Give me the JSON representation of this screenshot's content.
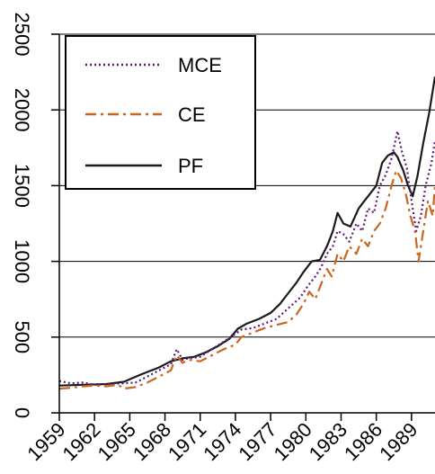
{
  "chart_data": {
    "type": "line",
    "title": "",
    "xlabel": "",
    "ylabel": "",
    "xlim": [
      1959,
      1991
    ],
    "ylim": [
      0,
      2500
    ],
    "grid": "horizontal",
    "legend_position": "top-left",
    "x_ticks": [
      "1959",
      "1962",
      "1965",
      "1968",
      "1971",
      "1974",
      "1977",
      "1980",
      "1983",
      "1986",
      "1989"
    ],
    "y_ticks": [
      "0",
      "500",
      "1000",
      "1500",
      "2000",
      "2500"
    ],
    "series": [
      {
        "name": "PF",
        "style": "solid",
        "color": "#1a1a1a",
        "x": [
          1959,
          1961,
          1963,
          1964.5,
          1966,
          1967.5,
          1968.5,
          1969.5,
          1970.5,
          1971.5,
          1972.5,
          1973.5,
          1974.2,
          1975,
          1976,
          1977,
          1977.8,
          1978.5,
          1979.2,
          1979.8,
          1980.5,
          1981.2,
          1981.8,
          1982.3,
          1982.7,
          1983.2,
          1983.8,
          1984.5,
          1985,
          1985.5,
          1986,
          1986.5,
          1987,
          1987.5,
          1987.8,
          1988.3,
          1988.7,
          1989.1,
          1989.5,
          1990,
          1990.5,
          1991
        ],
        "y": [
          180,
          185,
          190,
          205,
          255,
          300,
          340,
          360,
          370,
          400,
          440,
          490,
          555,
          590,
          620,
          660,
          720,
          790,
          860,
          930,
          1000,
          1010,
          1100,
          1200,
          1320,
          1250,
          1230,
          1350,
          1400,
          1450,
          1500,
          1650,
          1700,
          1720,
          1690,
          1600,
          1500,
          1430,
          1560,
          1780,
          1980,
          2220
        ]
      },
      {
        "name": "MCE",
        "style": "dotted",
        "color": "#5c1a7a",
        "x": [
          1959,
          1960,
          1961,
          1962,
          1963,
          1964.5,
          1965.5,
          1966.5,
          1967.5,
          1968.5,
          1969,
          1969.5,
          1970,
          1971,
          1972,
          1973,
          1974,
          1974.5,
          1975.5,
          1976.5,
          1977.5,
          1978.5,
          1979.5,
          1980.2,
          1980.8,
          1981.3,
          1981.8,
          1982.3,
          1982.7,
          1983.2,
          1983.7,
          1984.3,
          1984.8,
          1985.3,
          1985.8,
          1986.3,
          1986.8,
          1987.3,
          1987.8,
          1988.2,
          1988.6,
          1989,
          1989.4,
          1989.8,
          1990.2,
          1990.7,
          1991
        ],
        "y": [
          210,
          195,
          200,
          185,
          190,
          195,
          200,
          240,
          280,
          320,
          420,
          350,
          360,
          370,
          420,
          470,
          520,
          550,
          560,
          590,
          620,
          690,
          760,
          840,
          900,
          960,
          1050,
          1100,
          1200,
          1180,
          1130,
          1250,
          1200,
          1350,
          1320,
          1500,
          1570,
          1680,
          1860,
          1720,
          1620,
          1400,
          1200,
          1300,
          1500,
          1650,
          1800
        ]
      },
      {
        "name": "CE",
        "style": "dashdot",
        "color": "#c8661e",
        "x": [
          1959,
          1960,
          1961,
          1962,
          1963,
          1964,
          1964.5,
          1965.5,
          1966.5,
          1967.5,
          1968.5,
          1969,
          1969.5,
          1970,
          1971,
          1972,
          1973,
          1974,
          1974.5,
          1975.5,
          1976.5,
          1977.5,
          1978.5,
          1979.2,
          1979.8,
          1980.3,
          1980.8,
          1981.3,
          1981.8,
          1982.2,
          1982.7,
          1983.2,
          1983.7,
          1984.3,
          1984.8,
          1985.3,
          1985.8,
          1986.3,
          1986.8,
          1987.3,
          1987.7,
          1988.1,
          1988.5,
          1988.9,
          1989.3,
          1989.6,
          1990,
          1990.4,
          1990.8,
          1991
        ],
        "y": [
          160,
          165,
          175,
          180,
          175,
          185,
          160,
          170,
          200,
          240,
          280,
          380,
          330,
          350,
          340,
          380,
          420,
          450,
          500,
          530,
          560,
          580,
          600,
          650,
          720,
          800,
          750,
          850,
          950,
          900,
          1050,
          1000,
          1100,
          1050,
          1150,
          1100,
          1200,
          1250,
          1350,
          1500,
          1600,
          1550,
          1450,
          1300,
          1200,
          1000,
          1200,
          1400,
          1300,
          1500
        ]
      }
    ]
  }
}
